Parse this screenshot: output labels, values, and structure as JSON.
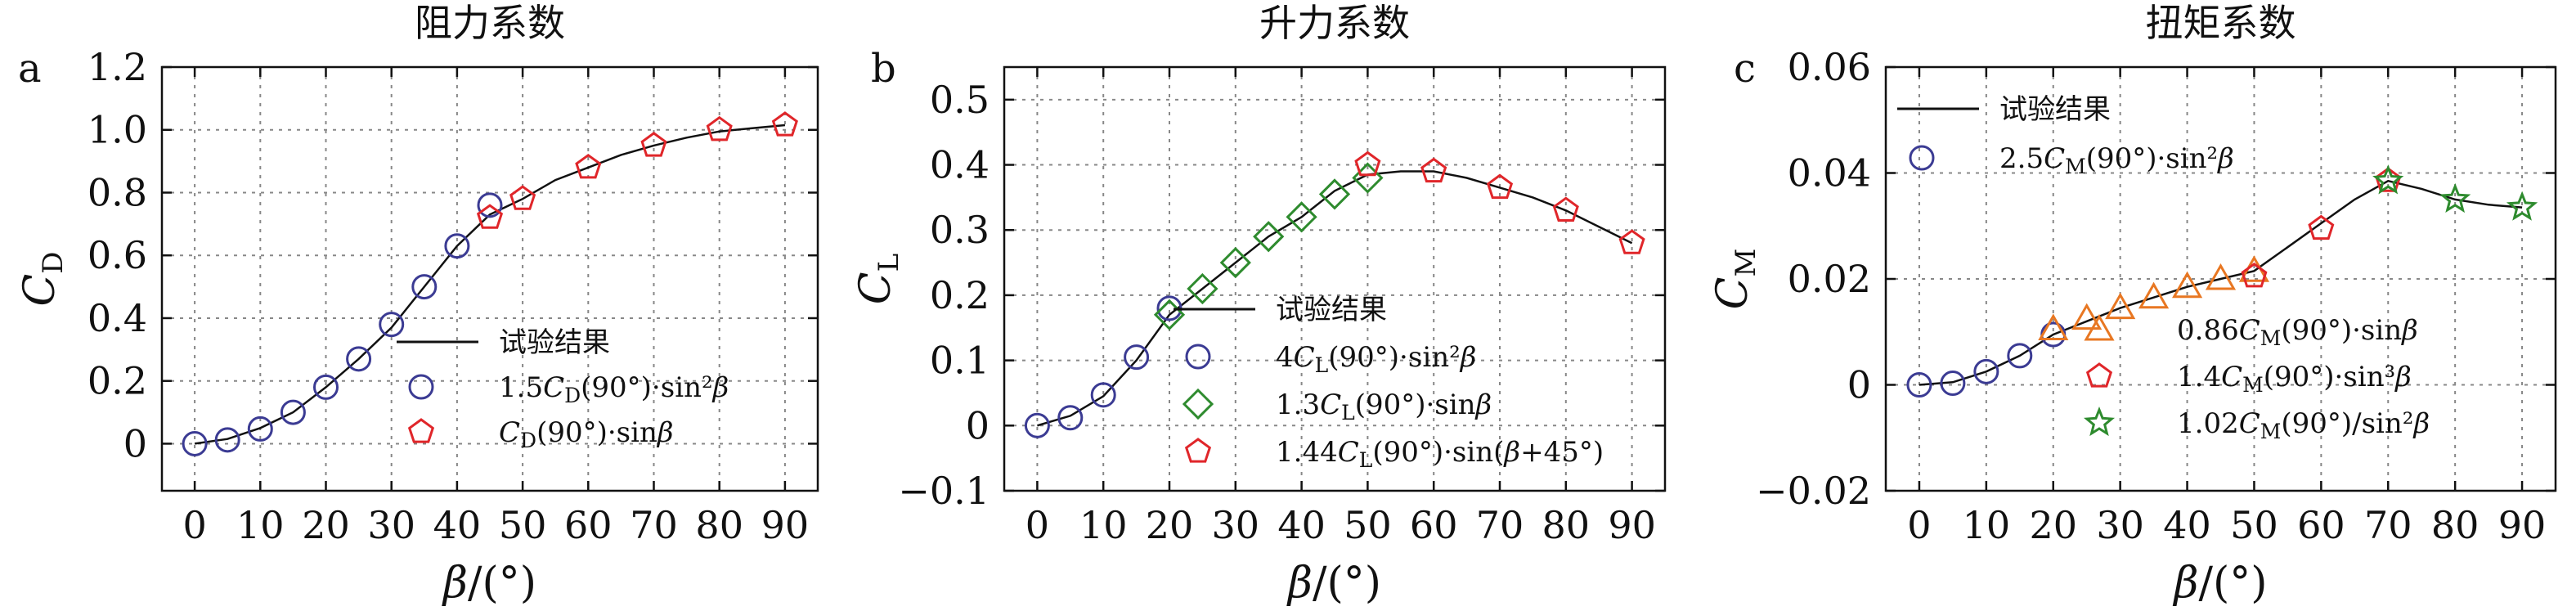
{
  "colors": {
    "blue": "#3b3b93",
    "green": "#2e8b2e",
    "red": "#e0262a",
    "orange": "#e87722",
    "line": "#111111"
  },
  "chart_data": [
    {
      "type": "scatter",
      "letter": "a",
      "title": "阻力系数",
      "xlabel": "β/(°)",
      "ylabel": "C_D",
      "ylabel_main": "C",
      "ylabel_sub": "D",
      "xlim": [
        -5,
        95
      ],
      "ylim": [
        -0.15,
        1.2
      ],
      "xticks": [
        0,
        10,
        20,
        30,
        40,
        50,
        60,
        70,
        80,
        90
      ],
      "xtick_labels": [
        "0",
        "10",
        "20",
        "30",
        "40",
        "50",
        "60",
        "70",
        "80",
        "90"
      ],
      "yticks": [
        0,
        0.2,
        0.4,
        0.6,
        0.8,
        1.0,
        1.2
      ],
      "ytick_labels": [
        "0",
        "0.2",
        "0.4",
        "0.6",
        "0.8",
        "1.0",
        "1.2"
      ],
      "grid": true,
      "legend_placement": "lower-right",
      "line": {
        "name": "试验结果",
        "x": [
          0,
          5,
          10,
          15,
          20,
          25,
          30,
          35,
          40,
          45,
          50,
          55,
          60,
          65,
          70,
          75,
          80,
          85,
          90
        ],
        "y": [
          0,
          0.015,
          0.05,
          0.1,
          0.18,
          0.27,
          0.37,
          0.5,
          0.63,
          0.73,
          0.78,
          0.84,
          0.88,
          0.92,
          0.95,
          0.975,
          0.995,
          1.005,
          1.015
        ]
      },
      "series": [
        {
          "name": "1.5C_D(90°)·sin²β",
          "marker": "circle",
          "color": "blue",
          "x": [
            0,
            5,
            10,
            15,
            20,
            25,
            30,
            35,
            40,
            45
          ],
          "y": [
            0,
            0.012,
            0.047,
            0.1,
            0.18,
            0.27,
            0.38,
            0.5,
            0.63,
            0.76
          ]
        },
        {
          "name": "C_D(90°)·sinβ",
          "marker": "pentagon",
          "color": "red",
          "x": [
            45,
            50,
            60,
            70,
            80,
            90
          ],
          "y": [
            0.72,
            0.78,
            0.88,
            0.95,
            1.0,
            1.015
          ]
        }
      ],
      "legend": [
        {
          "marker": "line",
          "color": "line",
          "parts": [
            {
              "text": "试验结果"
            }
          ]
        },
        {
          "marker": "circle",
          "color": "blue",
          "parts": [
            {
              "text": "1.5"
            },
            {
              "text": "C",
              "italic": true
            },
            {
              "text": "D",
              "sub": true
            },
            {
              "text": "(90°)·sin²"
            },
            {
              "text": "β",
              "italic": true
            }
          ]
        },
        {
          "marker": "pentagon",
          "color": "red",
          "parts": [
            {
              "text": "C",
              "italic": true
            },
            {
              "text": "D",
              "sub": true
            },
            {
              "text": "(90°)·sin"
            },
            {
              "text": "β",
              "italic": true
            }
          ]
        }
      ]
    },
    {
      "type": "scatter",
      "letter": "b",
      "title": "升力系数",
      "xlabel": "β/(°)",
      "ylabel": "C_L",
      "ylabel_main": "C",
      "ylabel_sub": "L",
      "xlim": [
        -5,
        95
      ],
      "ylim": [
        -0.1,
        0.55
      ],
      "xticks": [
        0,
        10,
        20,
        30,
        40,
        50,
        60,
        70,
        80,
        90
      ],
      "xtick_labels": [
        "0",
        "10",
        "20",
        "30",
        "40",
        "50",
        "60",
        "70",
        "80",
        "90"
      ],
      "yticks": [
        -0.1,
        0,
        0.1,
        0.2,
        0.3,
        0.4,
        0.5
      ],
      "ytick_labels": [
        "−0.1",
        "0",
        "0.1",
        "0.2",
        "0.3",
        "0.4",
        "0.5"
      ],
      "grid": true,
      "legend_placement": "lower-right",
      "line": {
        "name": "试验结果",
        "x": [
          0,
          5,
          10,
          15,
          20,
          25,
          30,
          35,
          40,
          45,
          50,
          55,
          60,
          65,
          70,
          75,
          80,
          85,
          90
        ],
        "y": [
          0,
          0.015,
          0.045,
          0.1,
          0.17,
          0.21,
          0.25,
          0.29,
          0.32,
          0.36,
          0.385,
          0.39,
          0.39,
          0.38,
          0.365,
          0.35,
          0.33,
          0.305,
          0.28
        ]
      },
      "series": [
        {
          "name": "4C_L(90°)·sin²β",
          "marker": "circle",
          "color": "blue",
          "x": [
            0,
            5,
            10,
            15,
            20
          ],
          "y": [
            0,
            0.012,
            0.047,
            0.105,
            0.18
          ]
        },
        {
          "name": "1.3C_L(90°)·sinβ",
          "marker": "diamond",
          "color": "green",
          "x": [
            20,
            25,
            30,
            35,
            40,
            45,
            50
          ],
          "y": [
            0.17,
            0.21,
            0.25,
            0.29,
            0.32,
            0.355,
            0.38
          ]
        },
        {
          "name": "1.44C_L(90°)·sin(β+45°)",
          "marker": "pentagon",
          "color": "red",
          "x": [
            50,
            60,
            70,
            80,
            90
          ],
          "y": [
            0.4,
            0.39,
            0.365,
            0.33,
            0.28
          ]
        }
      ],
      "legend": [
        {
          "marker": "line",
          "color": "line",
          "parts": [
            {
              "text": "试验结果"
            }
          ]
        },
        {
          "marker": "circle",
          "color": "blue",
          "parts": [
            {
              "text": "4"
            },
            {
              "text": "C",
              "italic": true
            },
            {
              "text": "L",
              "sub": true
            },
            {
              "text": "(90°)·sin²"
            },
            {
              "text": "β",
              "italic": true
            }
          ]
        },
        {
          "marker": "diamond",
          "color": "green",
          "parts": [
            {
              "text": "1.3"
            },
            {
              "text": "C",
              "italic": true
            },
            {
              "text": "L",
              "sub": true
            },
            {
              "text": "(90°)·sin"
            },
            {
              "text": "β",
              "italic": true
            }
          ]
        },
        {
          "marker": "pentagon",
          "color": "red",
          "parts": [
            {
              "text": "1.44"
            },
            {
              "text": "C",
              "italic": true
            },
            {
              "text": "L",
              "sub": true
            },
            {
              "text": "(90°)·sin("
            },
            {
              "text": "β",
              "italic": true
            },
            {
              "text": "+45°)"
            }
          ]
        }
      ]
    },
    {
      "type": "scatter",
      "letter": "c",
      "title": "扭矩系数",
      "xlabel": "β/(°)",
      "ylabel": "C_M",
      "ylabel_main": "C",
      "ylabel_sub": "M",
      "xlim": [
        -5,
        95
      ],
      "ylim": [
        -0.02,
        0.06
      ],
      "xticks": [
        0,
        10,
        20,
        30,
        40,
        50,
        60,
        70,
        80,
        90
      ],
      "xtick_labels": [
        "0",
        "10",
        "20",
        "30",
        "40",
        "50",
        "60",
        "70",
        "80",
        "90"
      ],
      "yticks": [
        -0.02,
        0,
        0.02,
        0.04,
        0.06
      ],
      "ytick_labels": [
        "−0.02",
        "0",
        "0.02",
        "0.04",
        "0.06"
      ],
      "grid": true,
      "legend_placement": "top-left and lower-right",
      "line": {
        "name": "试验结果",
        "x": [
          0,
          5,
          10,
          15,
          20,
          25,
          30,
          35,
          40,
          45,
          50,
          55,
          60,
          65,
          70,
          75,
          80,
          85,
          90
        ],
        "y": [
          0,
          0.0005,
          0.0025,
          0.0055,
          0.0095,
          0.012,
          0.0145,
          0.0165,
          0.0185,
          0.02,
          0.0215,
          0.026,
          0.0305,
          0.035,
          0.0385,
          0.037,
          0.035,
          0.034,
          0.0335
        ]
      },
      "series": [
        {
          "name": "2.5C_M(90°)·sin²β",
          "marker": "circle",
          "color": "blue",
          "x": [
            0,
            5,
            10,
            15,
            20
          ],
          "y": [
            0,
            0.0003,
            0.0025,
            0.0055,
            0.0095
          ]
        },
        {
          "name": "0.86C_M(90°)·sinβ",
          "marker": "triangle",
          "color": "orange",
          "x": [
            20,
            25,
            30,
            35,
            40,
            45,
            50
          ],
          "y": [
            0.0105,
            0.0125,
            0.0145,
            0.0165,
            0.0185,
            0.02,
            0.0215
          ]
        },
        {
          "name": "1.4C_M(90°)·sin³β",
          "marker": "pentagon",
          "color": "red",
          "x": [
            50,
            60,
            70
          ],
          "y": [
            0.0205,
            0.0295,
            0.0385
          ]
        },
        {
          "name": "1.02C_M(90°)/sin²β",
          "marker": "star",
          "color": "green",
          "x": [
            70,
            80,
            90
          ],
          "y": [
            0.0385,
            0.035,
            0.0335
          ]
        }
      ],
      "legend_top": [
        {
          "marker": "line",
          "color": "line",
          "parts": [
            {
              "text": "试验结果"
            }
          ]
        },
        {
          "marker": "circle",
          "color": "blue",
          "parts": [
            {
              "text": "2.5"
            },
            {
              "text": "C",
              "italic": true
            },
            {
              "text": "M",
              "sub": true
            },
            {
              "text": "(90°)·sin²"
            },
            {
              "text": "β",
              "italic": true
            }
          ]
        }
      ],
      "legend": [
        {
          "marker": "triangle",
          "color": "orange",
          "parts": [
            {
              "text": "0.86"
            },
            {
              "text": "C",
              "italic": true
            },
            {
              "text": "M",
              "sub": true
            },
            {
              "text": "(90°)·sin"
            },
            {
              "text": "β",
              "italic": true
            }
          ]
        },
        {
          "marker": "pentagon",
          "color": "red",
          "parts": [
            {
              "text": "1.4"
            },
            {
              "text": "C",
              "italic": true
            },
            {
              "text": "M",
              "sub": true
            },
            {
              "text": "(90°)·sin³"
            },
            {
              "text": "β",
              "italic": true
            }
          ]
        },
        {
          "marker": "star",
          "color": "green",
          "parts": [
            {
              "text": "1.02"
            },
            {
              "text": "C",
              "italic": true
            },
            {
              "text": "M",
              "sub": true
            },
            {
              "text": "(90°)/sin²"
            },
            {
              "text": "β",
              "italic": true
            }
          ]
        }
      ]
    }
  ]
}
